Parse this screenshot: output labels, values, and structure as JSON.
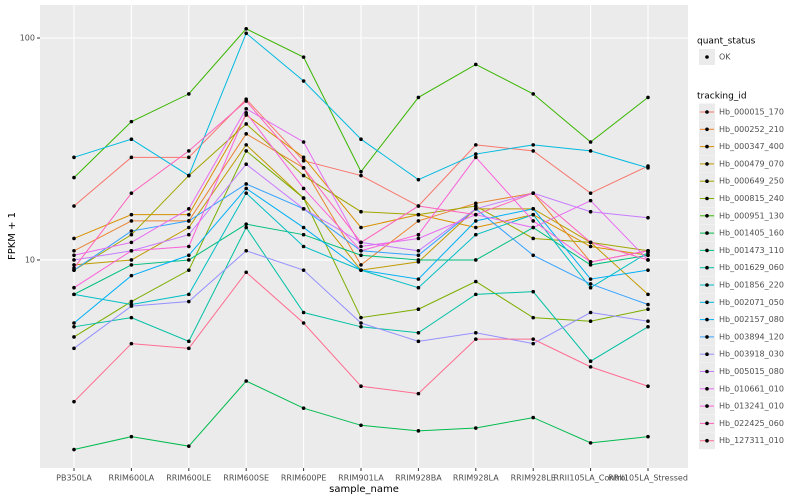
{
  "chart_data": {
    "type": "line",
    "x_label": "sample_name",
    "y_label": "FPKM + 1",
    "log_y": true,
    "grid": true,
    "point_color": "#000000",
    "status_legend": {
      "title": "quant_status",
      "items": [
        "OK"
      ]
    },
    "legend_title": "tracking_id",
    "categories": [
      "PB350LA",
      "RRIM600LA",
      "RRIM600LE",
      "RRIM600SE",
      "RRIM600PE",
      "RRIM901LA",
      "RRIM928BA",
      "RRIM928LA",
      "RRIM928LE",
      "RRII105LA_Control",
      "RRII105LA_Stressed"
    ],
    "ylim": [
      1.156,
      140.8
    ],
    "yticks": [
      10,
      100
    ],
    "series": [
      {
        "name": "Hb_000015_170",
        "color": "#F8766D",
        "values": [
          17.5,
          29,
          29,
          53,
          28,
          24,
          17.5,
          33,
          31,
          20,
          26.5
        ]
      },
      {
        "name": "Hb_000252_210",
        "color": "#EA8331",
        "values": [
          11,
          15,
          15,
          37,
          26,
          9.5,
          15,
          18,
          20,
          9.8,
          11
        ]
      },
      {
        "name": "Hb_000347_400",
        "color": "#D89000",
        "values": [
          12.5,
          16,
          16,
          45,
          29,
          14,
          16,
          14,
          16,
          11.5,
          10.5
        ]
      },
      {
        "name": "Hb_000479_070",
        "color": "#C09B00",
        "values": [
          9.5,
          10,
          14,
          33,
          19,
          9,
          9.8,
          17,
          17,
          12,
          7
        ]
      },
      {
        "name": "Hb_000649_250",
        "color": "#A3A500",
        "values": [
          9,
          13,
          24,
          41,
          24,
          16.5,
          16,
          17.5,
          12.5,
          12,
          11
        ]
      },
      {
        "name": "Hb_000815_240",
        "color": "#7CAE00",
        "values": [
          4.5,
          6.5,
          9,
          31,
          19,
          5.5,
          6,
          8,
          5.5,
          5.3,
          6
        ]
      },
      {
        "name": "Hb_000951_130",
        "color": "#39B600",
        "values": [
          23.5,
          42,
          56,
          110,
          82,
          25,
          54,
          76,
          56,
          34,
          54
        ]
      },
      {
        "name": "Hb_001405_160",
        "color": "#00BB4E",
        "values": [
          1.4,
          1.6,
          1.45,
          2.85,
          2.15,
          1.8,
          1.7,
          1.75,
          1.95,
          1.5,
          1.6
        ]
      },
      {
        "name": "Hb_001473_110",
        "color": "#00BF7D",
        "values": [
          7,
          9.5,
          10,
          14.5,
          13,
          10.5,
          10,
          10,
          14,
          9.5,
          10.5
        ]
      },
      {
        "name": "Hb_001629_060",
        "color": "#00C1A3",
        "values": [
          5,
          5.5,
          4.3,
          14,
          5.8,
          5,
          4.7,
          7,
          7.2,
          3.5,
          5
        ]
      },
      {
        "name": "Hb_001856_220",
        "color": "#00BFC4",
        "values": [
          7,
          6.3,
          7,
          20,
          11.5,
          9,
          7.5,
          13,
          16,
          7.5,
          10.8
        ]
      },
      {
        "name": "Hb_002071_050",
        "color": "#00BAE0",
        "values": [
          29,
          35,
          24,
          105,
          64,
          35,
          23,
          30,
          33,
          31,
          26
        ]
      },
      {
        "name": "Hb_002157_080",
        "color": "#00B0F6",
        "values": [
          5.2,
          8.5,
          10.5,
          21,
          14,
          9,
          8.2,
          15,
          17,
          8.2,
          9
        ]
      },
      {
        "name": "Hb_003894_120",
        "color": "#35A2FF",
        "values": [
          9,
          13.5,
          15,
          22,
          17,
          11,
          10.5,
          17,
          10.5,
          7.8,
          6.3
        ]
      },
      {
        "name": "Hb_003918_030",
        "color": "#9590FF",
        "values": [
          4,
          6.2,
          6.5,
          11,
          9,
          5.2,
          4.3,
          4.7,
          4.2,
          5.8,
          5.3
        ]
      },
      {
        "name": "Hb_005015_080",
        "color": "#C77CFF",
        "values": [
          10,
          11,
          13,
          27,
          17,
          12,
          11,
          17,
          20,
          16.5,
          15.5
        ]
      },
      {
        "name": "Hb_010661_010",
        "color": "#E76BF3",
        "values": [
          10.5,
          12,
          17,
          48,
          34,
          11.5,
          12.5,
          16,
          14,
          18.5,
          10
        ]
      },
      {
        "name": "Hb_013241_010",
        "color": "#FA62DB",
        "values": [
          7.5,
          11,
          11.5,
          46,
          21,
          11,
          13,
          29,
          15,
          9.8,
          11
        ]
      },
      {
        "name": "Hb_022425_060",
        "color": "#FF62BC",
        "values": [
          9.2,
          20,
          31,
          52,
          26,
          12,
          17.5,
          16,
          20,
          12,
          10
        ]
      },
      {
        "name": "Hb_127311_010",
        "color": "#FF6C91",
        "values": [
          2.3,
          4.2,
          4,
          8.8,
          5.2,
          2.7,
          2.5,
          4.4,
          4.4,
          3.3,
          2.7
        ]
      }
    ]
  }
}
